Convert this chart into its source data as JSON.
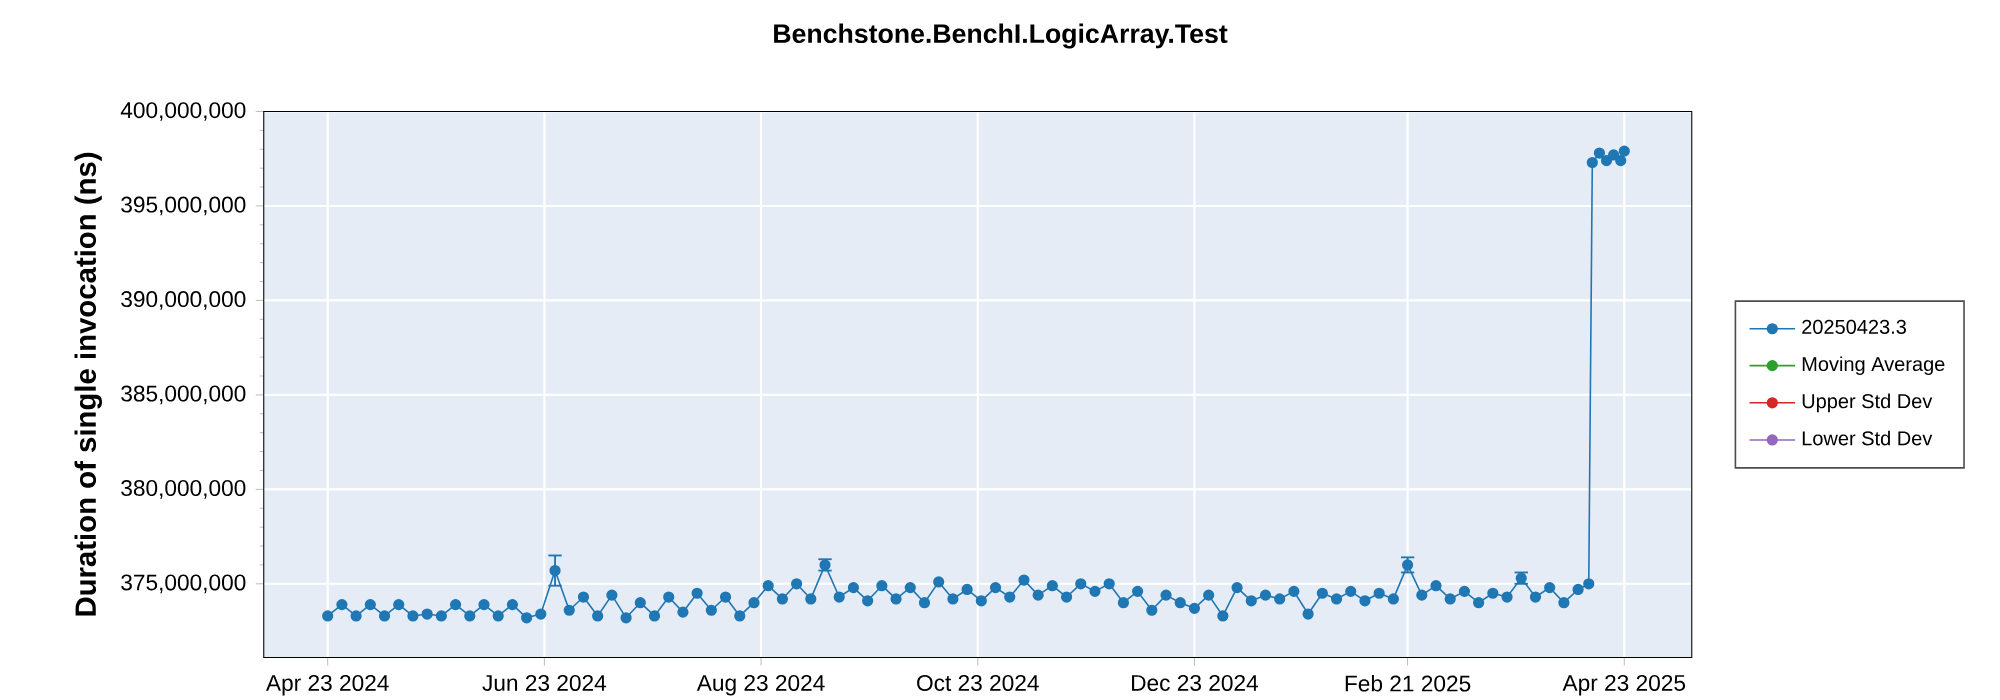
{
  "chart_data": {
    "type": "line",
    "title": "Benchstone.BenchI.LogicArray.Test",
    "ylabel": "Duration of single invocation (ns)",
    "x": [
      "2024-04-23",
      "2024-04-27",
      "2024-05-01",
      "2024-05-05",
      "2024-05-09",
      "2024-05-13",
      "2024-05-17",
      "2024-05-21",
      "2024-05-25",
      "2024-05-29",
      "2024-06-02",
      "2024-06-06",
      "2024-06-10",
      "2024-06-14",
      "2024-06-18",
      "2024-06-22",
      "2024-06-26",
      "2024-06-30",
      "2024-07-04",
      "2024-07-08",
      "2024-07-12",
      "2024-07-16",
      "2024-07-20",
      "2024-07-24",
      "2024-07-28",
      "2024-08-01",
      "2024-08-05",
      "2024-08-09",
      "2024-08-13",
      "2024-08-17",
      "2024-08-21",
      "2024-08-25",
      "2024-08-29",
      "2024-09-02",
      "2024-09-06",
      "2024-09-10",
      "2024-09-14",
      "2024-09-18",
      "2024-09-22",
      "2024-09-26",
      "2024-09-30",
      "2024-10-04",
      "2024-10-08",
      "2024-10-12",
      "2024-10-16",
      "2024-10-20",
      "2024-10-24",
      "2024-10-28",
      "2024-11-01",
      "2024-11-05",
      "2024-11-09",
      "2024-11-13",
      "2024-11-17",
      "2024-11-21",
      "2024-11-25",
      "2024-11-29",
      "2024-12-03",
      "2024-12-07",
      "2024-12-11",
      "2024-12-15",
      "2024-12-19",
      "2024-12-23",
      "2024-12-27",
      "2024-12-31",
      "2025-01-04",
      "2025-01-08",
      "2025-01-12",
      "2025-01-16",
      "2025-01-20",
      "2025-01-24",
      "2025-01-28",
      "2025-02-01",
      "2025-02-05",
      "2025-02-09",
      "2025-02-13",
      "2025-02-17",
      "2025-02-21",
      "2025-02-25",
      "2025-03-01",
      "2025-03-05",
      "2025-03-09",
      "2025-03-13",
      "2025-03-17",
      "2025-03-21",
      "2025-03-25",
      "2025-03-29",
      "2025-04-02",
      "2025-04-06",
      "2025-04-10",
      "2025-04-13",
      "2025-04-14",
      "2025-04-16",
      "2025-04-18",
      "2025-04-20",
      "2025-04-22",
      "2025-04-23"
    ],
    "series": [
      {
        "name": "20250423.3",
        "color": "#1f77b4",
        "values": [
          373300000,
          373900000,
          373300000,
          373900000,
          373300000,
          373900000,
          373300000,
          373400000,
          373300000,
          373900000,
          373300000,
          373900000,
          373300000,
          373900000,
          373200000,
          373400000,
          375700000,
          373600000,
          374300000,
          373300000,
          374400000,
          373200000,
          374000000,
          373300000,
          374300000,
          373500000,
          374500000,
          373600000,
          374300000,
          373300000,
          374000000,
          374900000,
          374200000,
          375000000,
          374200000,
          376000000,
          374300000,
          374800000,
          374100000,
          374900000,
          374200000,
          374800000,
          374000000,
          375100000,
          374200000,
          374700000,
          374100000,
          374800000,
          374300000,
          375200000,
          374400000,
          374900000,
          374300000,
          375000000,
          374600000,
          375000000,
          374000000,
          374600000,
          373600000,
          374400000,
          374000000,
          373700000,
          374400000,
          373300000,
          374800000,
          374100000,
          374400000,
          374200000,
          374600000,
          373400000,
          374500000,
          374200000,
          374600000,
          374100000,
          374500000,
          374200000,
          376000000,
          374400000,
          374900000,
          374200000,
          374600000,
          374000000,
          374500000,
          374300000,
          375300000,
          374300000,
          374800000,
          374000000,
          374700000,
          375000000,
          397300000,
          397800000,
          397400000,
          397700000,
          397400000,
          397900000
        ],
        "errors": [
          null,
          null,
          null,
          null,
          null,
          null,
          null,
          null,
          null,
          null,
          null,
          null,
          null,
          null,
          null,
          null,
          800000,
          null,
          null,
          null,
          null,
          null,
          null,
          null,
          null,
          null,
          null,
          null,
          null,
          null,
          null,
          null,
          null,
          null,
          null,
          300000,
          null,
          null,
          null,
          null,
          null,
          null,
          null,
          null,
          null,
          null,
          null,
          null,
          null,
          null,
          null,
          null,
          null,
          null,
          null,
          null,
          null,
          null,
          null,
          null,
          null,
          null,
          null,
          null,
          null,
          null,
          null,
          null,
          null,
          null,
          null,
          null,
          null,
          null,
          null,
          null,
          400000,
          null,
          null,
          null,
          null,
          null,
          null,
          null,
          300000,
          null,
          null,
          null,
          null,
          null,
          null,
          null,
          null,
          null,
          null,
          null
        ]
      },
      {
        "name": "Moving Average",
        "color": "#2ca02c",
        "values": [
          null,
          null,
          null,
          null,
          null,
          null,
          null,
          null,
          null,
          null,
          null,
          null,
          null,
          null,
          null,
          null,
          null,
          null,
          null,
          null,
          null,
          null,
          null,
          null,
          null,
          null,
          null,
          null,
          null,
          null,
          null,
          null,
          null,
          null,
          null,
          null,
          null,
          null,
          null,
          null,
          null,
          null,
          null,
          null,
          null,
          null,
          null,
          null,
          null,
          null,
          null,
          null,
          null,
          null,
          null,
          null,
          null,
          null,
          null,
          null,
          null,
          null,
          null,
          null,
          null,
          null,
          null,
          null,
          null,
          null,
          null,
          null,
          null,
          null,
          null,
          null,
          null,
          null,
          null,
          null,
          null,
          null,
          null,
          null,
          null,
          null,
          null,
          null,
          null,
          null,
          null,
          null,
          null,
          null,
          null,
          null
        ]
      },
      {
        "name": "Upper Std Dev",
        "color": "#d62728",
        "values": [
          null,
          null,
          null,
          null,
          null,
          null,
          null,
          null,
          null,
          null,
          null,
          null,
          null,
          null,
          null,
          null,
          null,
          null,
          null,
          null,
          null,
          null,
          null,
          null,
          null,
          null,
          null,
          null,
          null,
          null,
          null,
          null,
          null,
          null,
          null,
          null,
          null,
          null,
          null,
          null,
          null,
          null,
          null,
          null,
          null,
          null,
          null,
          null,
          null,
          null,
          null,
          null,
          null,
          null,
          null,
          null,
          null,
          null,
          null,
          null,
          null,
          null,
          null,
          null,
          null,
          null,
          null,
          null,
          null,
          null,
          null,
          null,
          null,
          null,
          null,
          null,
          null,
          null,
          null,
          null,
          null,
          null,
          null,
          null,
          null,
          null,
          null,
          null,
          null,
          null,
          null,
          null,
          null,
          null,
          null,
          null
        ]
      },
      {
        "name": "Lower Std Dev",
        "color": "#9467bd",
        "values": [
          null,
          null,
          null,
          null,
          null,
          null,
          null,
          null,
          null,
          null,
          null,
          null,
          null,
          null,
          null,
          null,
          null,
          null,
          null,
          null,
          null,
          null,
          null,
          null,
          null,
          null,
          null,
          null,
          null,
          null,
          null,
          null,
          null,
          null,
          null,
          null,
          null,
          null,
          null,
          null,
          null,
          null,
          null,
          null,
          null,
          null,
          null,
          null,
          null,
          null,
          null,
          null,
          null,
          null,
          null,
          null,
          null,
          null,
          null,
          null,
          null,
          null,
          null,
          null,
          null,
          null,
          null,
          null,
          null,
          null,
          null,
          null,
          null,
          null,
          null,
          null,
          null,
          null,
          null,
          null,
          null,
          null,
          null,
          null,
          null,
          null,
          null,
          null,
          null,
          null,
          null,
          null,
          null,
          null,
          null,
          null
        ]
      }
    ],
    "xlim": [
      "2024-04-05",
      "2025-05-12"
    ],
    "xticks": [
      {
        "value": "2024-04-23",
        "label": "Apr 23 2024"
      },
      {
        "value": "2024-06-23",
        "label": "Jun 23 2024"
      },
      {
        "value": "2024-08-23",
        "label": "Aug 23 2024"
      },
      {
        "value": "2024-10-23",
        "label": "Oct 23 2024"
      },
      {
        "value": "2024-12-23",
        "label": "Dec 23 2024"
      },
      {
        "value": "2025-02-21",
        "label": "Feb 21 2025"
      },
      {
        "value": "2025-04-23",
        "label": "Apr 23 2025"
      }
    ],
    "ylim": [
      371100000,
      400000000
    ],
    "yticks": [
      {
        "value": 375000000,
        "label": "375,000,000"
      },
      {
        "value": 380000000,
        "label": "380,000,000"
      },
      {
        "value": 385000000,
        "label": "385,000,000"
      },
      {
        "value": 390000000,
        "label": "390,000,000"
      },
      {
        "value": 395000000,
        "label": "395,000,000"
      },
      {
        "value": 400000000,
        "label": "400,000,000"
      }
    ],
    "grid": true,
    "legend": "right",
    "marker": "circle",
    "line_style": "solid"
  }
}
